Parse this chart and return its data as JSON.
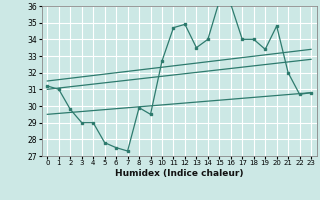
{
  "title": "",
  "xlabel": "Humidex (Indice chaleur)",
  "ylabel": "",
  "xlim": [
    -0.5,
    23.5
  ],
  "ylim": [
    27,
    36
  ],
  "yticks": [
    27,
    28,
    29,
    30,
    31,
    32,
    33,
    34,
    35,
    36
  ],
  "xticks": [
    0,
    1,
    2,
    3,
    4,
    5,
    6,
    7,
    8,
    9,
    10,
    11,
    12,
    13,
    14,
    15,
    16,
    17,
    18,
    19,
    20,
    21,
    22,
    23
  ],
  "bg_color": "#cce8e5",
  "grid_color": "#ffffff",
  "line_color": "#2e7b6e",
  "line_main": {
    "x": [
      0,
      1,
      2,
      3,
      4,
      5,
      6,
      7,
      8,
      9,
      10,
      11,
      12,
      13,
      14,
      15,
      16,
      17,
      18,
      19,
      20,
      21,
      22,
      23
    ],
    "y": [
      31.2,
      31.0,
      29.8,
      29.0,
      29.0,
      27.8,
      27.5,
      27.3,
      29.9,
      29.5,
      32.7,
      34.7,
      34.9,
      33.5,
      34.0,
      36.3,
      36.1,
      34.0,
      34.0,
      33.4,
      34.8,
      32.0,
      30.7,
      30.8
    ]
  },
  "line_upper": {
    "x": [
      0,
      23
    ],
    "y": [
      31.5,
      33.4
    ]
  },
  "line_mid": {
    "x": [
      0,
      23
    ],
    "y": [
      31.0,
      32.8
    ]
  },
  "line_lower": {
    "x": [
      0,
      23
    ],
    "y": [
      29.5,
      30.8
    ]
  }
}
